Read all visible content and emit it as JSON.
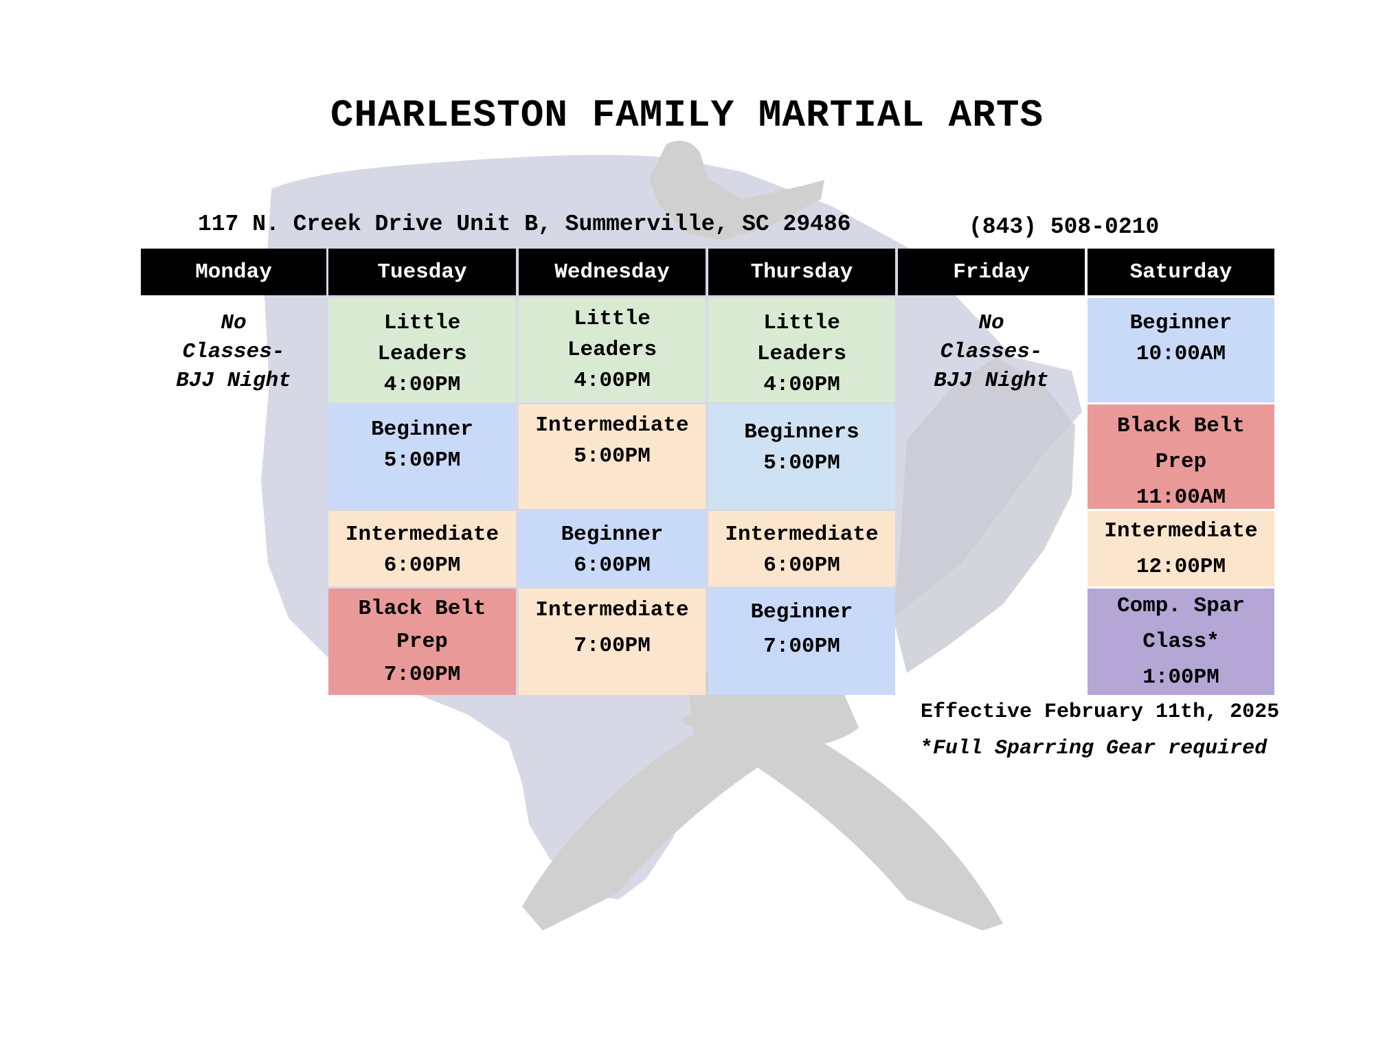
{
  "header": {
    "title": "CHARLESTON FAMILY MARTIAL ARTS",
    "address": "117 N. Creek Drive Unit B, Summerville, SC 29486",
    "phone": "(843) 508-0210"
  },
  "colors": {
    "header_bg": "#000000",
    "little_leaders": "#d9ead3",
    "beginner": "#c9daf8",
    "beginners_light": "#cfe2f3",
    "intermediate": "#fce5cd",
    "black_belt": "#ea9999",
    "comp_spar": "#b4a7d6",
    "watermark": "#d5d7e6",
    "watermark_gray": "#cfcfcf"
  },
  "days": [
    {
      "key": "mon",
      "label": "Monday"
    },
    {
      "key": "tue",
      "label": "Tuesday"
    },
    {
      "key": "wed",
      "label": "Wednesday"
    },
    {
      "key": "thu",
      "label": "Thursday"
    },
    {
      "key": "fri",
      "label": "Friday"
    },
    {
      "key": "sat",
      "label": "Saturday"
    }
  ],
  "monday_note": [
    "No",
    "Classes-",
    "BJJ Night"
  ],
  "friday_note": [
    "No",
    "Classes-",
    "BJJ Night"
  ],
  "classes": {
    "tue": [
      {
        "name": [
          "Little",
          "Leaders"
        ],
        "time": "4:00PM",
        "color": "#d9ead3"
      },
      {
        "name": [
          "Beginner"
        ],
        "time": "5:00PM",
        "color": "#c9daf8"
      },
      {
        "name": [
          "Intermediate"
        ],
        "time": "6:00PM",
        "color": "#fce5cd"
      },
      {
        "name": [
          "Black Belt",
          "Prep"
        ],
        "time": "7:00PM",
        "color": "#ea9999"
      }
    ],
    "wed": [
      {
        "name": [
          "Little",
          "Leaders"
        ],
        "time": "4:00PM",
        "color": "#d9ead3"
      },
      {
        "name": [
          "Intermediate"
        ],
        "time": "5:00PM",
        "color": "#fce5cd"
      },
      {
        "name": [
          "Beginner"
        ],
        "time": "6:00PM",
        "color": "#c9daf8"
      },
      {
        "name": [
          "Intermediate"
        ],
        "time": "7:00PM",
        "color": "#fce5cd"
      }
    ],
    "thu": [
      {
        "name": [
          "Little",
          "Leaders"
        ],
        "time": "4:00PM",
        "color": "#d9ead3"
      },
      {
        "name": [
          "Beginners"
        ],
        "time": "5:00PM",
        "color": "#cfe2f3"
      },
      {
        "name": [
          "Intermediate"
        ],
        "time": "6:00PM",
        "color": "#fce5cd"
      },
      {
        "name": [
          "Beginner"
        ],
        "time": "7:00PM",
        "color": "#c9daf8"
      }
    ],
    "sat": [
      {
        "name": [
          "Beginner"
        ],
        "time": "10:00AM",
        "color": "#c9daf8"
      },
      {
        "name": [
          "Black Belt",
          "Prep"
        ],
        "time": "11:00AM",
        "color": "#ea9999"
      },
      {
        "name": [
          "Intermediate"
        ],
        "time": "12:00PM",
        "color": "#fce5cd"
      },
      {
        "name": [
          "Comp. Spar",
          "Class*"
        ],
        "time": "1:00PM",
        "color": "#b4a7d6"
      }
    ]
  },
  "footer": {
    "effective": "Effective February 11th, 2025",
    "footnote_star": "*",
    "footnote": "Full Sparring Gear required"
  }
}
